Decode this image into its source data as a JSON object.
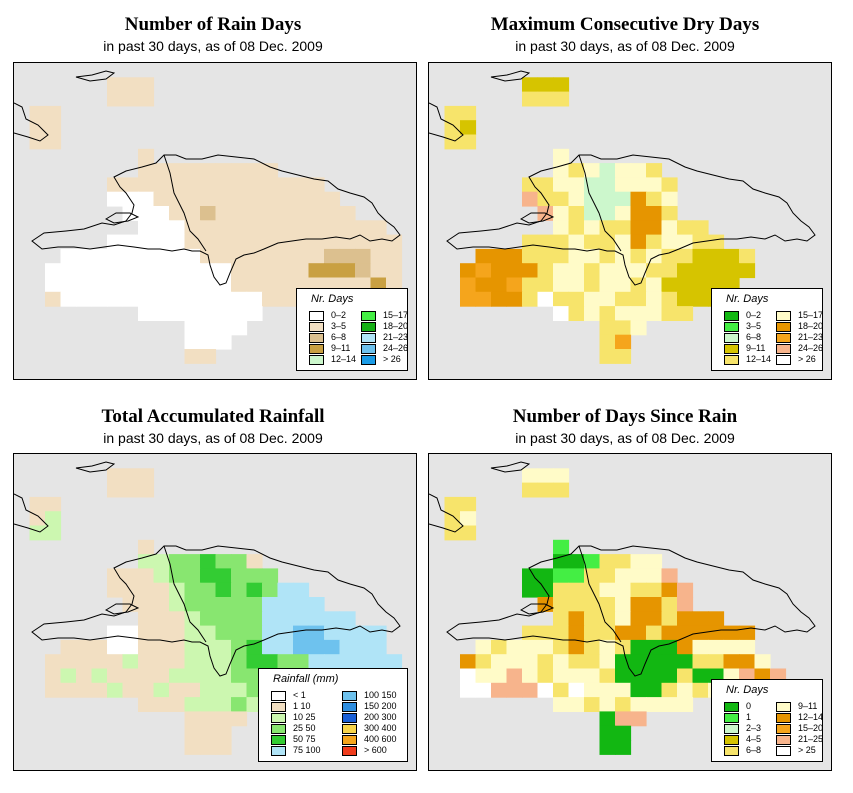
{
  "panels": [
    {
      "id": "rain-days",
      "title": "Number of Rain Days",
      "subtitle": "in past 30 days, as of  08 Dec. 2009",
      "legend": {
        "title": "Nr. Days",
        "items": [
          {
            "label": "0–2",
            "color": "#ffffff"
          },
          {
            "label": "3–5",
            "color": "#f2dfc2"
          },
          {
            "label": "6–8",
            "color": "#dcc08f"
          },
          {
            "label": "9–11",
            "color": "#c9a042"
          },
          {
            "label": "12–14",
            "color": "#ccf7cc"
          },
          {
            "label": "15–17",
            "color": "#44ee44"
          },
          {
            "label": "18–20",
            "color": "#16b016"
          },
          {
            "label": "21–23",
            "color": "#b0e4f7"
          },
          {
            "label": "24–26",
            "color": "#6ec2ee"
          },
          {
            "label": "> 26",
            "color": "#1a9be6"
          }
        ]
      },
      "grid_rows": [
        "..........................",
        "......BBB.................",
        "......BBB.................",
        ".BB.......................",
        ".BB.......................",
        ".BB.......................",
        "........B.................",
        "........BBBBBBBBB.........",
        "......BBBBBBBBBBBBBB......",
        "......WWWBBBBBBBBBBBB.....",
        ".......WWWBBCBBBBBBBBB....",
        "........WWWBBBBBBBBBBBBB..",
        "......WWWWWBBBBBBBBBBBBBB.",
        "...WWWWWWWWWBBBBBBBBCCCBB.",
        "..WWWWWWWWWWWWBBBBBDDDCBB.",
        "..WWWWWWWWWWWWBBBBBBBBBDB.",
        "..BWWWWWWWWWWWWWBBBBBBBB..",
        "........WWWWWWWW..........",
        "...........WWWW...........",
        "...........WWW............",
        "...........BB.............",
        ".........................."
      ],
      "grid_legend": {
        "W": "#ffffff",
        "B": "#f2dfc2",
        "C": "#dcc08f",
        "D": "#c9a042"
      }
    },
    {
      "id": "max-dry-days",
      "title": "Maximum Consecutive Dry Days",
      "subtitle": "in past 30 days, as of  08 Dec. 2009",
      "legend": {
        "title": "Nr. Days",
        "items": [
          {
            "label": "0–2",
            "color": "#12b712"
          },
          {
            "label": "3–5",
            "color": "#44ee44"
          },
          {
            "label": "6–8",
            "color": "#ccf7cc"
          },
          {
            "label": "9–11",
            "color": "#d6c400"
          },
          {
            "label": "12–14",
            "color": "#f7e46b"
          },
          {
            "label": "15–17",
            "color": "#fffbc8"
          },
          {
            "label": "18–20",
            "color": "#e69500"
          },
          {
            "label": "21–23",
            "color": "#f5a51c"
          },
          {
            "label": "24–26",
            "color": "#f7b48c"
          },
          {
            "label": "> 26",
            "color": "#ffffff"
          }
        ]
      },
      "grid_rows": [
        "..........................",
        "......JJJ.................",
        "......KKK.................",
        ".KK.......................",
        ".KJ.......................",
        ".KK.......................",
        "........L.................",
        "........LKLGLLK...........",
        "......KKLLGGLLLK..........",
        "......OKKLGGGMKL..........",
        ".......OLKGGLMMK..........",
        "........LKLKKMMLKK........",
        "......KKKLKKLMKLLKK.......",
        "...MMMKKKLLKLKLKKJJJK.....",
        "..MNMMMKLLKLLLKKJJJJJ.....",
        "..NMMNKKLLKLLKLJJJJJ......",
        "..NNMMKWKKLLKKLKJJJJ......",
        "........WKLKLLLKK.........",
        "...........KKL............",
        "...........KN.............",
        "...........KK.............",
        ".........................."
      ],
      "grid_legend": {
        "J": "#d6c400",
        "K": "#f7e46b",
        "L": "#fffbc8",
        "M": "#e69500",
        "N": "#f5a51c",
        "O": "#f7b48c",
        "G": "#ccf7cc",
        "W": "#ffffff"
      }
    },
    {
      "id": "total-rainfall",
      "title": "Total Accumulated Rainfall",
      "subtitle": "in past 30 days, as of  08 Dec. 2009",
      "legend": {
        "title": "Rainfall (mm)",
        "items": [
          {
            "label": "< 1",
            "color": "#ffffff"
          },
          {
            "label": "1   10",
            "color": "#f2dfc2"
          },
          {
            "label": "10   25",
            "color": "#ccf7b0"
          },
          {
            "label": "25   50",
            "color": "#88e670"
          },
          {
            "label": "50   75",
            "color": "#33cc33"
          },
          {
            "label": "75   100",
            "color": "#b0e4f7"
          },
          {
            "label": "100   150",
            "color": "#6ec2ee"
          },
          {
            "label": "150   200",
            "color": "#2e8ee0"
          },
          {
            "label": "200   300",
            "color": "#1a5fd6"
          },
          {
            "label": "300   400",
            "color": "#f7d44a"
          },
          {
            "label": "400   600",
            "color": "#f5a51c"
          },
          {
            "label": "> 600",
            "color": "#f03c1c"
          }
        ]
      },
      "grid_rows": [
        "..........................",
        "......BBB.................",
        "......BBB.................",
        ".BB.......................",
        ".BQ.......................",
        ".QQ.......................",
        "........B.................",
        "........QQRRSRRB..........",
        "......BBBQRRSSRRR.........",
        "......BBBBQRRSRSRTT.......",
        ".......BBBQRRRRRTTTT......",
        "........BBBQRRRRTTTTTT....",
        "......WWBBBQQRRRTTUUTTTT..",
        "...BBBWWBBBQQQRSTTUUUTTT..",
        "..BBBBBQBBBQQQRSSRRTTTTTT.",
        "..BQBQBBBBQQQQRRRRRTTTTTT.",
        "..BBBBQBBQBBQQQRRQQQQQ....",
        "........BBBQQQRQ..........",
        "...........BBBB...........",
        "...........BBB............",
        "...........BBB............",
        ".........................."
      ],
      "grid_legend": {
        "W": "#ffffff",
        "B": "#f2dfc2",
        "Q": "#ccf7b0",
        "R": "#88e670",
        "S": "#33cc33",
        "T": "#b0e4f7",
        "U": "#6ec2ee"
      }
    },
    {
      "id": "days-since-rain",
      "title": "Number of Days Since Rain",
      "subtitle": "in past 30 days, as of  08 Dec. 2009",
      "legend": {
        "title": "Nr. Days",
        "items": [
          {
            "label": "0",
            "color": "#12b712"
          },
          {
            "label": "1",
            "color": "#44ee44"
          },
          {
            "label": "2–3",
            "color": "#ccf7cc"
          },
          {
            "label": "4–5",
            "color": "#d6c400"
          },
          {
            "label": "6–8",
            "color": "#f7e46b"
          },
          {
            "label": "9–11",
            "color": "#fffbc8"
          },
          {
            "label": "12–14",
            "color": "#e69500"
          },
          {
            "label": "15–20",
            "color": "#f5a51c"
          },
          {
            "label": "21–25",
            "color": "#f7b48c"
          },
          {
            "label": "> 25",
            "color": "#ffffff"
          }
        ]
      },
      "grid_rows": [
        "..........................",
        "......LLL.................",
        "......KKK.................",
        ".KK.......................",
        ".KL.......................",
        ".KK.......................",
        "........H.................",
        "........GGHKKLL...........",
        "......GGHHKKLLLO..........",
        "......GGKKKLLKKMO.........",
        ".......MKKKKLMMKO.........",
        "........KMKKLMMKMMM.......",
        "......KKKMKKMMKMMMMMM.....",
        "...LKLLLKMKLKGGGMLLLL.....",
        "..MKLLLKLKKLGGGGGKKMML....",
        "..WLLOLKLLLKGGGGKGGLOMO...",
        "..WWOOOWKWLLLGGKLKLLLO....",
        "........LLKLKLLLL.........",
        "...........GOO............",
        "...........GG.............",
        "...........GG.............",
        ".........................."
      ],
      "grid_legend": {
        "G": "#12b712",
        "H": "#44ee44",
        "K": "#f7e46b",
        "L": "#fffbc8",
        "M": "#e69500",
        "O": "#f7b48c",
        "W": "#ffffff"
      }
    }
  ]
}
